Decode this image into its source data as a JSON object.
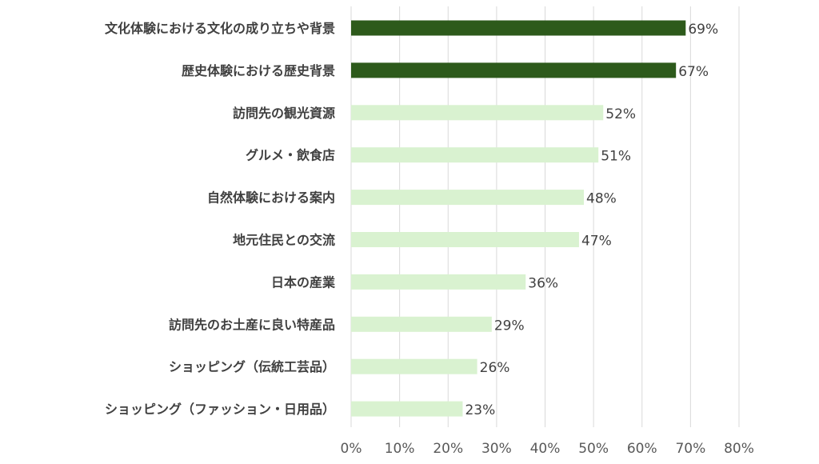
{
  "chart_data": {
    "type": "bar",
    "orientation": "horizontal",
    "categories": [
      "文化体験における文化の成り立ちや背景",
      "歴史体験における歴史背景",
      "訪問先の観光資源",
      "グルメ・飲食店",
      "自然体験における案内",
      "地元住民との交流",
      "日本の産業",
      "訪問先のお土産に良い特産品",
      "ショッピング（伝統工芸品）",
      "ショッピング（ファッション・日用品）"
    ],
    "values": [
      69,
      67,
      52,
      51,
      48,
      47,
      36,
      29,
      26,
      23
    ],
    "value_labels": [
      "69%",
      "67%",
      "52%",
      "51%",
      "48%",
      "47%",
      "36%",
      "29%",
      "26%",
      "23%"
    ],
    "highlight": [
      true,
      true,
      false,
      false,
      false,
      false,
      false,
      false,
      false,
      false
    ],
    "xlim": [
      0,
      80
    ],
    "x_ticks": [
      0,
      10,
      20,
      30,
      40,
      50,
      60,
      70,
      80
    ],
    "x_tick_labels": [
      "0%",
      "10%",
      "20%",
      "30%",
      "40%",
      "50%",
      "60%",
      "70%",
      "80%"
    ],
    "grid": true,
    "colors": {
      "highlight_bar": "#2d5a1b",
      "normal_bar": "#d9f2d0",
      "grid": "#d9d9d9",
      "category_label": "#404040",
      "value_label": "#404040",
      "tick_label": "#595959"
    }
  }
}
